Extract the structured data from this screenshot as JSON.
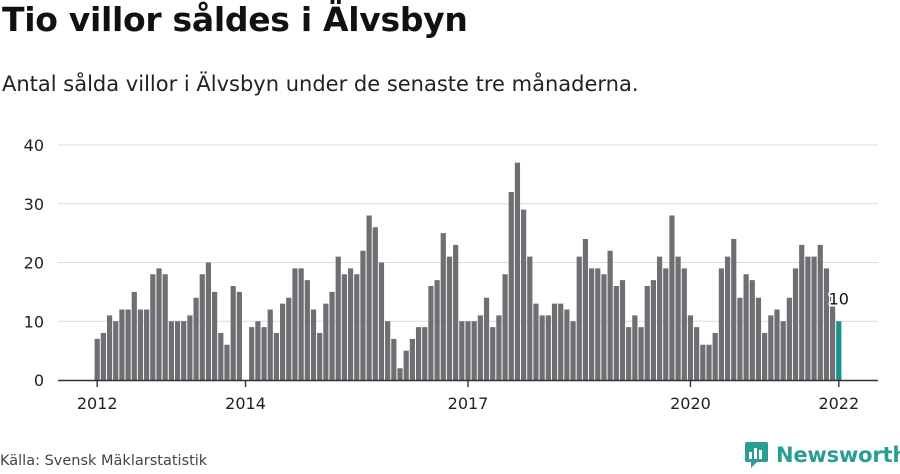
{
  "title": "Tio villor såldes i Älvsbyn",
  "subtitle": "Antal sålda villor i Älvsbyn under de senaste tre månaderna.",
  "source": "Källa: Svensk Mäklarstatistik",
  "brand": "Newsworthy",
  "colors": {
    "bar": "#6f6e73",
    "highlight": "#17918b",
    "grid": "#dcdcdc",
    "axis": "#333333",
    "brand": "#2a9d94"
  },
  "chart_data": {
    "type": "bar",
    "title": "Tio villor såldes i Älvsbyn",
    "xlabel": "",
    "ylabel": "",
    "ylim": [
      0,
      40
    ],
    "yticks": [
      0,
      10,
      20,
      30,
      40
    ],
    "grid": true,
    "x_start": "2012-01",
    "x_end": "2022-01",
    "xticks": [
      {
        "label": "2012",
        "index": 0
      },
      {
        "label": "2014",
        "index": 24
      },
      {
        "label": "2017",
        "index": 60
      },
      {
        "label": "2020",
        "index": 96
      },
      {
        "label": "2022",
        "index": 120
      }
    ],
    "values": [
      7,
      8,
      11,
      10,
      12,
      12,
      15,
      12,
      12,
      18,
      19,
      18,
      10,
      10,
      10,
      11,
      14,
      18,
      20,
      15,
      8,
      6,
      16,
      15,
      0,
      9,
      10,
      9,
      12,
      8,
      13,
      14,
      19,
      19,
      17,
      12,
      8,
      13,
      15,
      21,
      18,
      19,
      18,
      22,
      28,
      26,
      20,
      10,
      7,
      2,
      5,
      7,
      9,
      9,
      16,
      17,
      25,
      21,
      23,
      10,
      10,
      10,
      11,
      14,
      9,
      11,
      18,
      32,
      37,
      29,
      21,
      13,
      11,
      11,
      13,
      13,
      12,
      10,
      21,
      24,
      19,
      19,
      18,
      22,
      16,
      17,
      9,
      11,
      9,
      16,
      17,
      21,
      19,
      28,
      21,
      19,
      11,
      9,
      6,
      6,
      8,
      19,
      21,
      24,
      14,
      18,
      17,
      14,
      8,
      11,
      12,
      10,
      14,
      19,
      23,
      21,
      21,
      23,
      19,
      15,
      10
    ],
    "highlight_index": 120,
    "annotation": {
      "label": "10",
      "index": 120,
      "value": 10
    }
  }
}
